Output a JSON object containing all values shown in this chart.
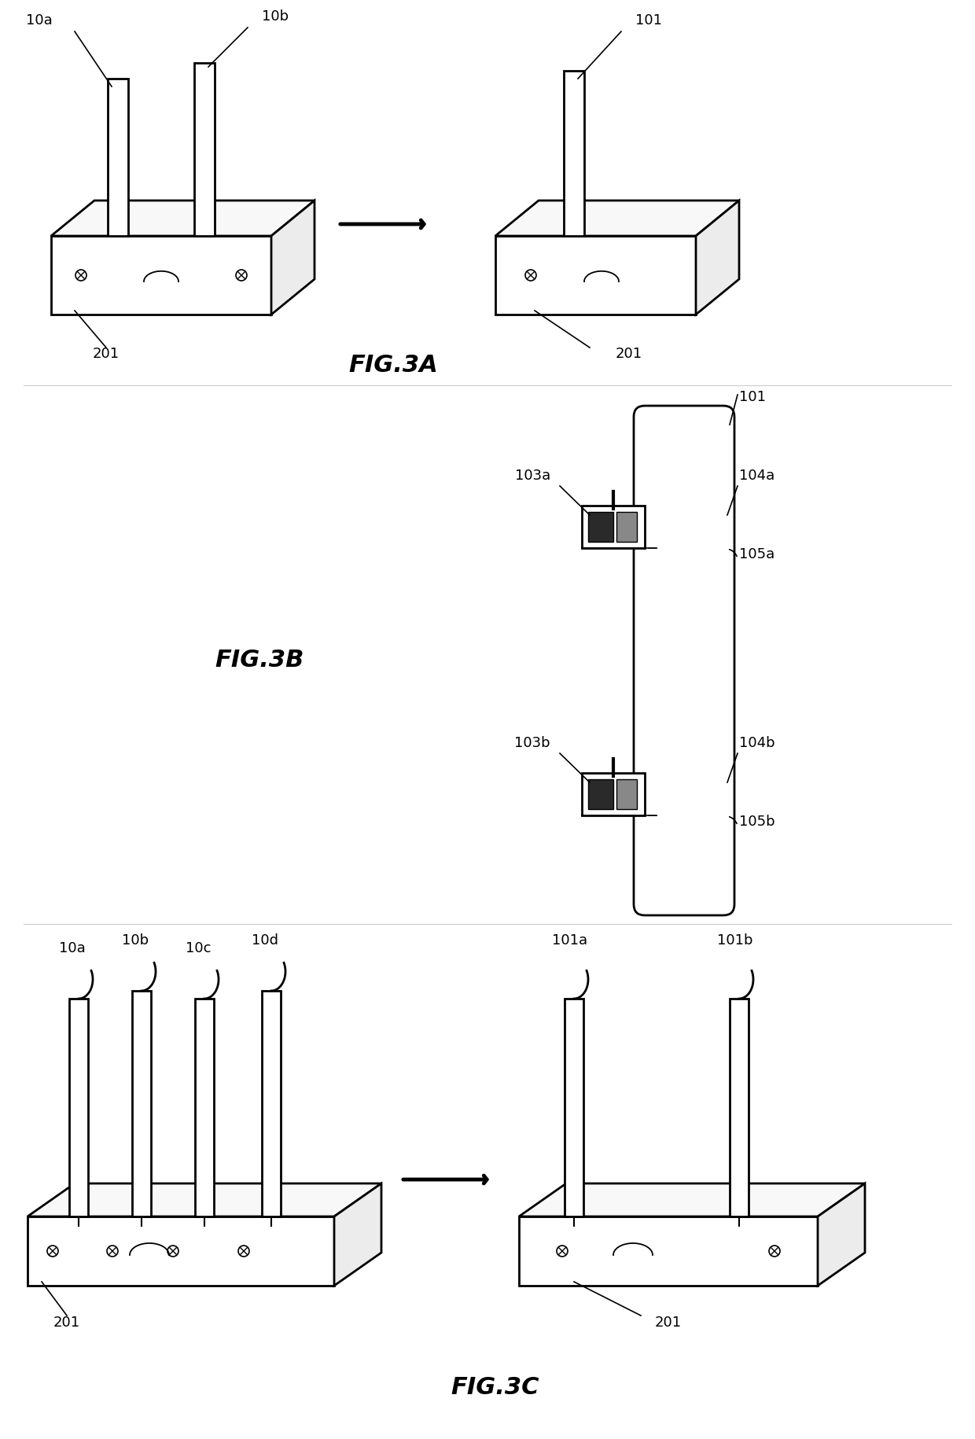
{
  "bg_color": "#ffffff",
  "lc": "#000000",
  "lw": 1.8,
  "fig3a_title": "FIG.3A",
  "fig3b_title": "FIG.3B",
  "fig3c_title": "FIG.3C"
}
